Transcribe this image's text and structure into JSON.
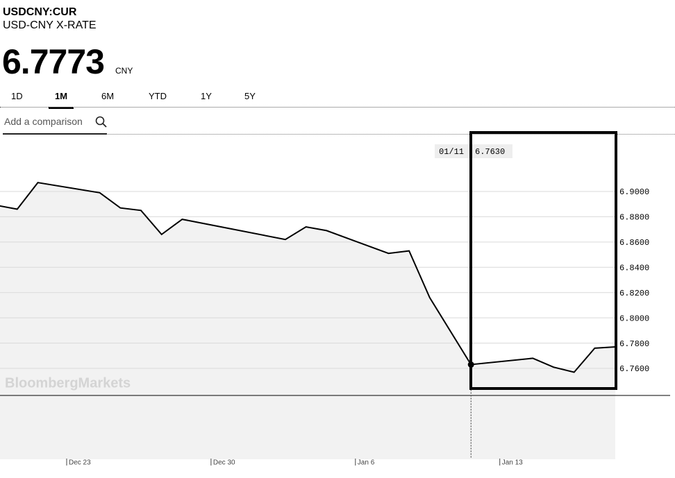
{
  "header": {
    "ticker": "USDCNY:CUR",
    "name": "USD-CNY X-RATE",
    "price": "6.7773",
    "currency": "CNY"
  },
  "tabs": [
    "1D",
    "1M",
    "6M",
    "YTD",
    "1Y",
    "5Y"
  ],
  "comparison_placeholder": "Add a comparison",
  "tooltip": {
    "date": "01/11",
    "value": "6.7630"
  },
  "watermark": "BloombergMarkets",
  "chart_data": {
    "type": "line",
    "x": [
      "Dec 19",
      "Dec 20",
      "Dec 21",
      "Dec 24",
      "Dec 25",
      "Dec 26",
      "Dec 27",
      "Dec 28",
      "Jan 2",
      "Jan 3",
      "Jan 4",
      "Jan 7",
      "Jan 8",
      "Jan 9",
      "Jan 11",
      "Jan 14",
      "Jan 15",
      "Jan 16",
      "Jan 17",
      "Jan 18"
    ],
    "series": [
      {
        "name": "USDCNY:CUR",
        "color": "#000000",
        "values": [
          6.889,
          6.886,
          6.907,
          6.899,
          6.887,
          6.885,
          6.866,
          6.878,
          6.862,
          6.872,
          6.869,
          6.851,
          6.853,
          6.816,
          6.763,
          6.768,
          6.761,
          6.757,
          6.776,
          6.777
        ]
      }
    ],
    "xticks": [
      "Dec 23",
      "Dec 30",
      "Jan 6",
      "Jan 13"
    ],
    "ylim": [
      6.7386,
      6.9439
    ],
    "yticks": [
      {
        "value": 6.76,
        "label": "6.7600"
      },
      {
        "value": 6.78,
        "label": "6.7800"
      },
      {
        "value": 6.8,
        "label": "6.8000"
      },
      {
        "value": 6.82,
        "label": "6.8200"
      },
      {
        "value": 6.84,
        "label": "6.8400"
      },
      {
        "value": 6.86,
        "label": "6.8600"
      },
      {
        "value": 6.88,
        "label": "6.8800"
      },
      {
        "value": 6.9,
        "label": "6.9000"
      }
    ],
    "grid": true
  }
}
